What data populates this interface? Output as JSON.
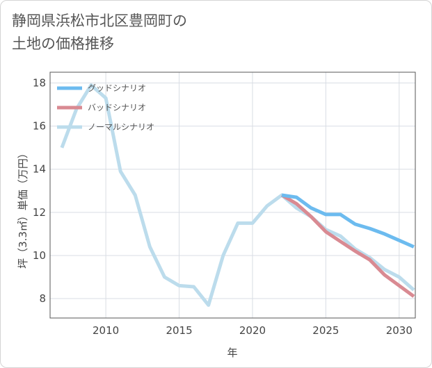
{
  "title": {
    "line1": "静岡県浜松市北区豊岡町の",
    "line2": "土地の価格推移"
  },
  "colors": {
    "good": "#6cbbef",
    "bad": "#d98a92",
    "normal": "#bcdcec",
    "grid": "#d9dde4",
    "plot_border": "#555555"
  },
  "chart_data": {
    "type": "line",
    "xlabel": "年",
    "ylabel": "坪（3.3㎡）単価（万円）",
    "xlim": [
      2006.2,
      2031.1
    ],
    "ylim": [
      7.1,
      18.5
    ],
    "x_ticks": [
      2010,
      2015,
      2020,
      2025,
      2030
    ],
    "y_ticks": [
      8,
      10,
      12,
      14,
      16,
      18
    ],
    "grid": true,
    "legend_position": "top-left",
    "series": [
      {
        "name": "グッドシナリオ",
        "key": "good",
        "x": [
          2022,
          2023,
          2024,
          2025,
          2026,
          2027,
          2028,
          2029,
          2030,
          2031
        ],
        "y": [
          12.8,
          12.7,
          12.2,
          11.9,
          11.9,
          11.45,
          11.25,
          11.0,
          10.7,
          10.4
        ]
      },
      {
        "name": "バッドシナリオ",
        "key": "bad",
        "x": [
          2022,
          2023,
          2024,
          2025,
          2026,
          2027,
          2028,
          2029,
          2030,
          2031
        ],
        "y": [
          12.8,
          12.4,
          11.8,
          11.1,
          10.65,
          10.2,
          9.8,
          9.1,
          8.6,
          8.1
        ]
      },
      {
        "name": "ノーマルシナリオ",
        "key": "normal",
        "x": [
          2007,
          2008,
          2009,
          2010,
          2011,
          2012,
          2013,
          2014,
          2015,
          2016,
          2017,
          2018,
          2019,
          2020,
          2021,
          2022,
          2023,
          2024,
          2025,
          2026,
          2027,
          2028,
          2029,
          2030,
          2031
        ],
        "y": [
          15.0,
          16.8,
          17.9,
          17.3,
          13.9,
          12.8,
          10.4,
          9.0,
          8.6,
          8.55,
          7.7,
          10.0,
          11.5,
          11.5,
          12.3,
          12.8,
          12.2,
          11.8,
          11.2,
          10.9,
          10.3,
          9.9,
          9.35,
          9.0,
          8.4
        ]
      }
    ]
  }
}
